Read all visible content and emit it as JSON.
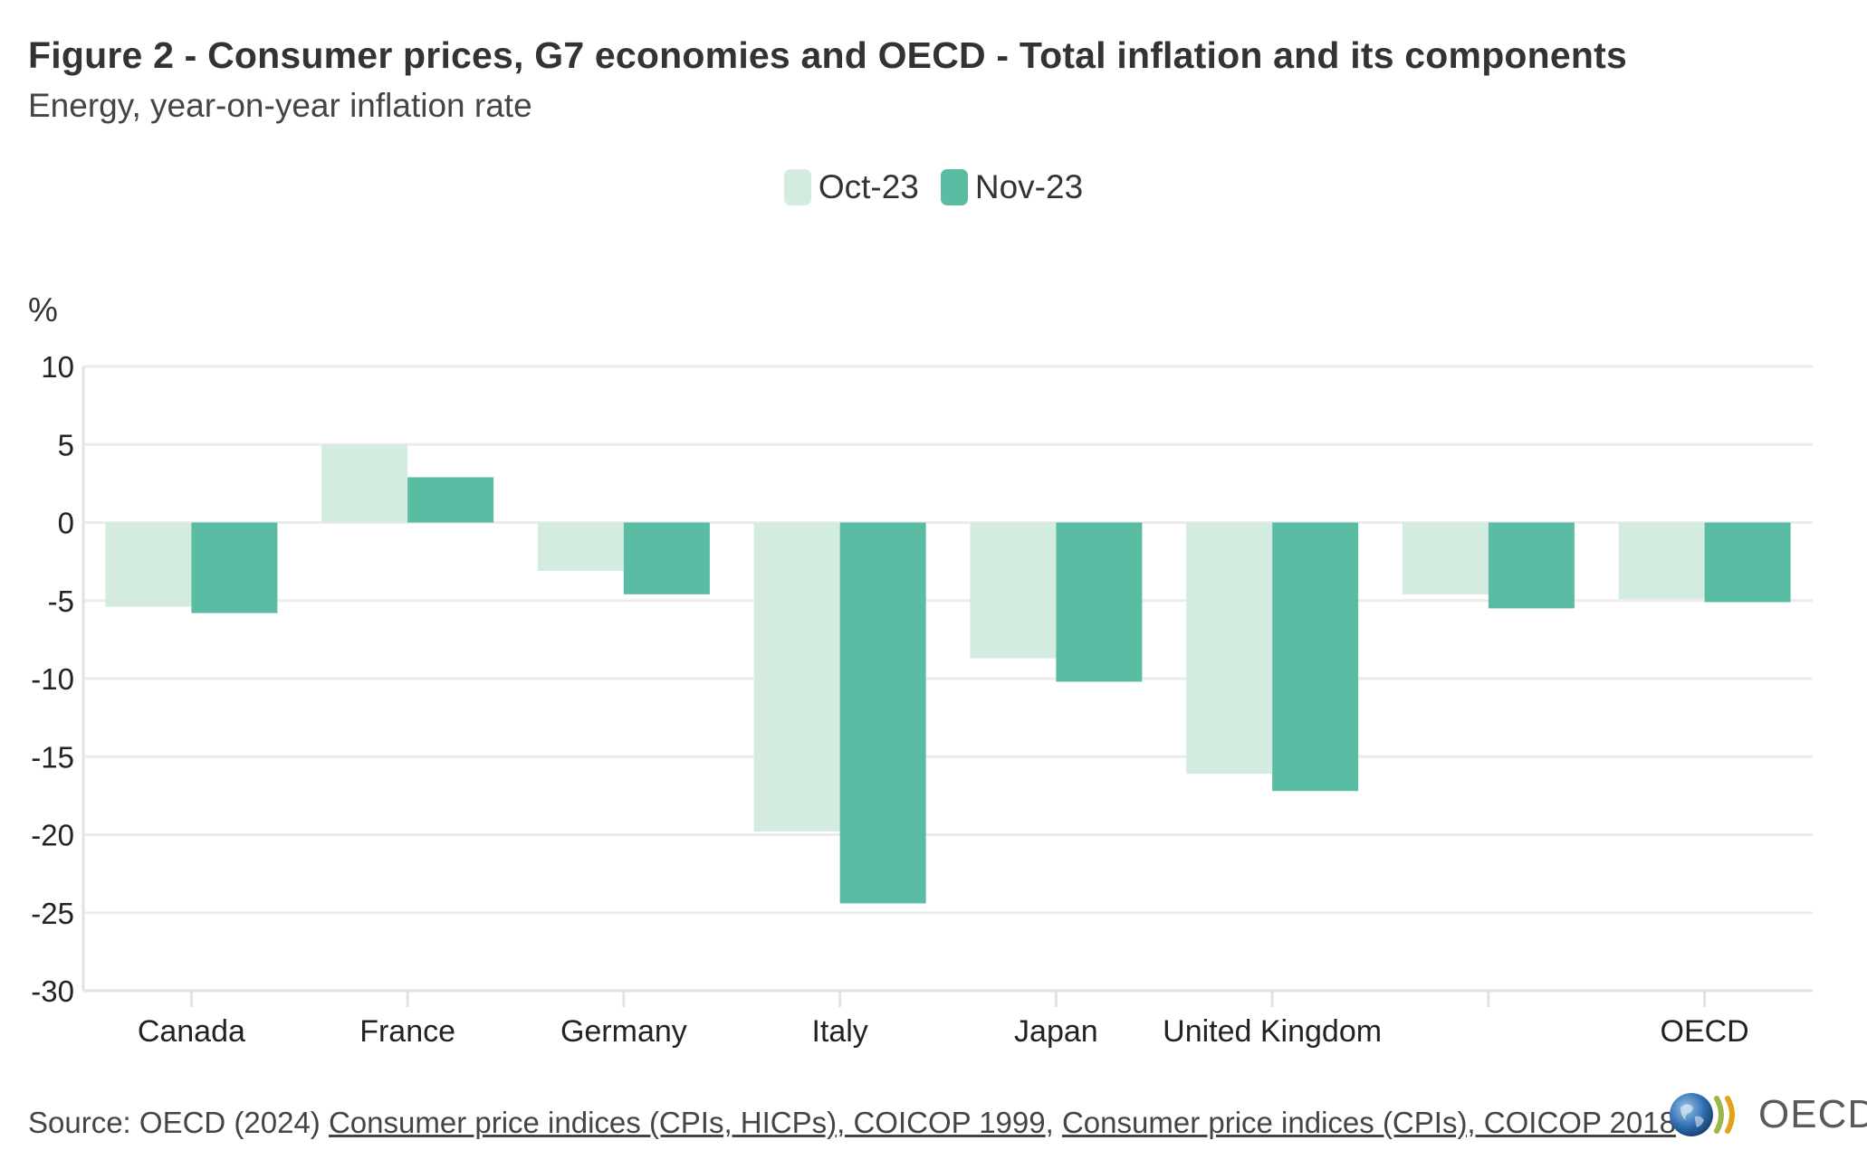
{
  "title": "Figure 2 - Consumer prices, G7 economies and OECD - Total inflation and its components",
  "subtitle": "Energy, year-on-year inflation rate",
  "unit_label": "%",
  "legend": [
    {
      "label": "Oct-23",
      "color": "#d4ebdf"
    },
    {
      "label": "Nov-23",
      "color": "#5bbca4"
    }
  ],
  "source": {
    "prefix": "Source: OECD (2024) ",
    "link1": "Consumer price indices (CPIs, HICPs), COICOP 1999",
    "separator": ", ",
    "link2": "Consumer price indices (CPIs), COICOP 2018"
  },
  "logo_text": "OECD",
  "chart_data": {
    "type": "bar",
    "title": "Figure 2 - Consumer prices, G7 economies and OECD - Total inflation and its components",
    "subtitle": "Energy, year-on-year inflation rate",
    "xlabel": "",
    "ylabel": "%",
    "categories": [
      "Canada",
      "France",
      "Germany",
      "Italy",
      "Japan",
      "United Kingdom",
      "",
      "OECD"
    ],
    "series": [
      {
        "name": "Oct-23",
        "color": "#d4ebdf",
        "values": [
          -5.4,
          5.0,
          -3.1,
          -19.8,
          -8.7,
          -16.1,
          -4.6,
          -4.9
        ]
      },
      {
        "name": "Nov-23",
        "color": "#5bbca4",
        "values": [
          -5.8,
          2.9,
          -4.6,
          -24.4,
          -10.2,
          -17.2,
          -5.5,
          -5.1
        ]
      }
    ],
    "ylim": [
      -30,
      10
    ],
    "yticks": [
      10,
      5,
      0,
      -5,
      -10,
      -15,
      -20,
      -25,
      -30
    ],
    "grid": true,
    "legend_position": "top-center"
  }
}
